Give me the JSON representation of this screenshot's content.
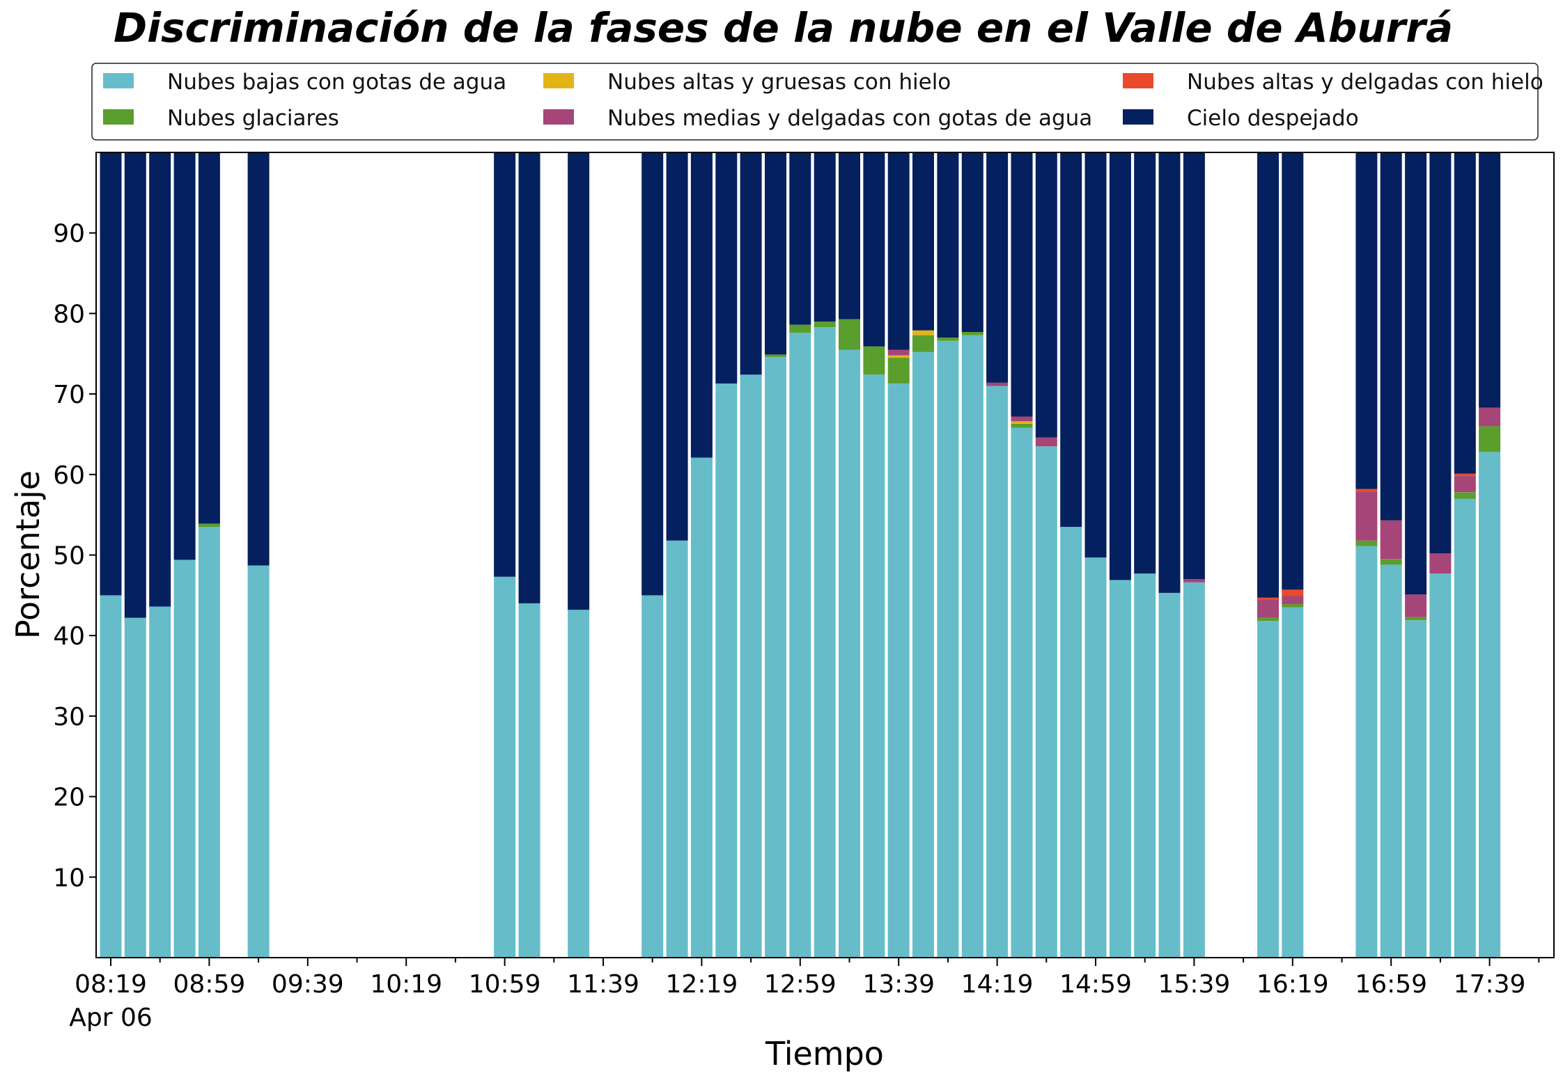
{
  "chart_data": {
    "type": "bar",
    "stacked": true,
    "title": "Discriminación de la fases de la nube en el Valle de Aburrá",
    "xlabel": "Tiempo",
    "ylabel": "Porcentaje",
    "ylim": [
      0,
      100
    ],
    "yticks": [
      10,
      20,
      30,
      40,
      50,
      60,
      70,
      80,
      90
    ],
    "xticks": [
      {
        "label": "08:19",
        "sub": "Apr 06",
        "minute": 0
      },
      {
        "label": "08:59",
        "sub": "",
        "minute": 40
      },
      {
        "label": "09:39",
        "sub": "",
        "minute": 80
      },
      {
        "label": "10:19",
        "sub": "",
        "minute": 120
      },
      {
        "label": "10:59",
        "sub": "",
        "minute": 160
      },
      {
        "label": "11:39",
        "sub": "",
        "minute": 200
      },
      {
        "label": "12:19",
        "sub": "",
        "minute": 240
      },
      {
        "label": "12:59",
        "sub": "",
        "minute": 280
      },
      {
        "label": "13:39",
        "sub": "",
        "minute": 320
      },
      {
        "label": "14:19",
        "sub": "",
        "minute": 360
      },
      {
        "label": "14:59",
        "sub": "",
        "minute": 400
      },
      {
        "label": "15:39",
        "sub": "",
        "minute": 440
      },
      {
        "label": "16:19",
        "sub": "",
        "minute": 480
      },
      {
        "label": "16:59",
        "sub": "",
        "minute": 520
      },
      {
        "label": "17:39",
        "sub": "",
        "minute": 560
      }
    ],
    "x": [
      "08:19",
      "08:29",
      "08:39",
      "08:49",
      "08:59",
      "09:19",
      "10:59",
      "11:09",
      "11:29",
      "11:59",
      "12:09",
      "12:19",
      "12:29",
      "12:39",
      "12:49",
      "12:59",
      "13:09",
      "13:19",
      "13:29",
      "13:39",
      "13:49",
      "13:59",
      "14:09",
      "14:19",
      "14:29",
      "14:39",
      "14:49",
      "14:59",
      "15:09",
      "15:19",
      "15:29",
      "15:39",
      "16:09",
      "16:19",
      "16:49",
      "16:59",
      "17:09",
      "17:19",
      "17:29",
      "17:39"
    ],
    "series": [
      {
        "name": "Nubes bajas con gotas de agua",
        "color": "#66BDC9",
        "values": [
          45.0,
          42.2,
          43.6,
          49.4,
          53.5,
          48.7,
          47.3,
          44.0,
          43.2,
          45.0,
          51.8,
          62.1,
          71.3,
          72.4,
          74.6,
          77.6,
          78.3,
          75.5,
          72.4,
          71.3,
          75.2,
          76.6,
          77.3,
          71.0,
          65.8,
          63.5,
          53.5,
          49.7,
          46.9,
          47.7,
          45.3,
          46.6,
          41.8,
          43.5,
          51.1,
          48.8,
          41.9,
          47.7,
          57.0,
          62.8
        ]
      },
      {
        "name": "Nubes glaciares",
        "color": "#5A9E2D",
        "values": [
          0,
          0,
          0,
          0,
          0.4,
          0,
          0,
          0,
          0,
          0,
          0,
          0,
          0,
          0,
          0.3,
          1.0,
          0.7,
          3.8,
          3.5,
          3.2,
          2.1,
          0.4,
          0.4,
          0,
          0.5,
          0,
          0,
          0,
          0,
          0,
          0,
          0,
          0.4,
          0.4,
          0.7,
          0.7,
          0.4,
          0,
          0.8,
          3.2
        ]
      },
      {
        "name": "Nubes altas y gruesas con hielo",
        "color": "#E3B418",
        "values": [
          0,
          0,
          0,
          0,
          0,
          0,
          0,
          0,
          0,
          0,
          0,
          0,
          0,
          0,
          0,
          0,
          0,
          0,
          0,
          0.3,
          0.6,
          0,
          0,
          0,
          0.3,
          0,
          0,
          0,
          0,
          0,
          0,
          0,
          0,
          0,
          0,
          0,
          0,
          0,
          0,
          0
        ]
      },
      {
        "name": "Nubes medias y delgadas con gotas de agua",
        "color": "#A54578",
        "values": [
          0,
          0,
          0,
          0,
          0,
          0,
          0,
          0,
          0,
          0,
          0,
          0,
          0,
          0,
          0,
          0,
          0,
          0,
          0,
          0.7,
          0,
          0,
          0,
          0.4,
          0.6,
          1.1,
          0,
          0,
          0,
          0,
          0,
          0.4,
          2.3,
          1.0,
          6.1,
          4.8,
          2.8,
          2.5,
          2.0,
          2.3
        ]
      },
      {
        "name": "Nubes altas y delgadas con hielo",
        "color": "#EA4A2C",
        "values": [
          0,
          0,
          0,
          0,
          0,
          0,
          0,
          0,
          0,
          0,
          0,
          0,
          0,
          0,
          0,
          0,
          0,
          0,
          0,
          0,
          0,
          0,
          0,
          0,
          0,
          0,
          0,
          0,
          0,
          0,
          0,
          0,
          0.2,
          0.8,
          0.3,
          0,
          0,
          0,
          0.3,
          0
        ]
      },
      {
        "name": "Cielo despejado",
        "color": "#05205E",
        "values": [
          55.0,
          57.8,
          56.4,
          50.6,
          46.1,
          51.3,
          52.7,
          56.0,
          56.8,
          55.0,
          48.2,
          37.9,
          28.7,
          27.6,
          25.1,
          21.4,
          21.0,
          20.7,
          24.1,
          24.5,
          22.1,
          23.0,
          22.3,
          28.6,
          32.8,
          35.4,
          46.5,
          50.3,
          53.1,
          52.3,
          54.7,
          53.0,
          55.3,
          54.3,
          41.8,
          45.7,
          54.9,
          49.8,
          39.9,
          31.7
        ]
      }
    ],
    "legend": {
      "placement": "top",
      "columns": 3
    },
    "grid": false
  }
}
